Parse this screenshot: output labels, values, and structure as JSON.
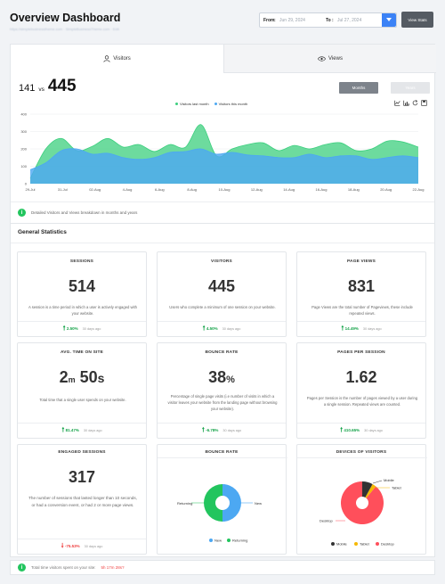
{
  "header": {
    "title": "Overview Dashboard",
    "subtitle": "https://simplebusinesstheme.com · SimpleBusinessTheme.com · Edit",
    "from_label": "From",
    "from_value": "Jun 29, 2024",
    "to_label": "To",
    "to_value": "Jul 27, 2024",
    "view_stats_label": "View Stats"
  },
  "tabs": {
    "visitors": "Visitors",
    "views": "Views"
  },
  "summary": {
    "last": "141",
    "vs": "vs",
    "current": "445",
    "months_label": "Months",
    "years_label": "Years"
  },
  "chart_data": {
    "type": "area",
    "x": [
      "29-Jul",
      "30-Jul",
      "31-Jul",
      "1-Aug",
      "2-Aug",
      "3-Aug",
      "4-Aug",
      "5-Aug",
      "6-Aug",
      "7-Aug",
      "8-Aug",
      "9-Aug",
      "10-Aug",
      "11-Aug",
      "12-Aug",
      "13-Aug",
      "14-Aug",
      "15-Aug",
      "16-Aug",
      "17-Aug",
      "18-Aug",
      "19-Aug",
      "20-Aug",
      "21-Aug",
      "22-Aug",
      "23-Aug"
    ],
    "tick_labels": [
      "29-Jul",
      "31-Jul",
      "02-Aug",
      "4-Aug",
      "6-Aug",
      "8-Aug",
      "10-Aug",
      "12-Aug",
      "14-Aug",
      "16-Aug",
      "18-Aug",
      "20-Aug",
      "22-Aug"
    ],
    "series": [
      {
        "name": "Visitors last month",
        "color": "#3ccf7e",
        "values": [
          30,
          200,
          260,
          190,
          215,
          260,
          210,
          225,
          185,
          225,
          210,
          340,
          160,
          200,
          225,
          235,
          190,
          220,
          200,
          225,
          235,
          190,
          200,
          245,
          240,
          210
        ]
      },
      {
        "name": "Visitors this month",
        "color": "#4ca8f2",
        "values": [
          80,
          120,
          190,
          200,
          170,
          175,
          150,
          140,
          150,
          180,
          185,
          200,
          170,
          180,
          165,
          160,
          150,
          150,
          170,
          150,
          160,
          160,
          140,
          150,
          160,
          150
        ]
      }
    ],
    "ylim": [
      0,
      400
    ],
    "yticks": [
      "0",
      "100",
      "200",
      "300",
      "400"
    ],
    "grid": true,
    "legend": "top-center"
  },
  "chart_info": "Detailed Visitors and Views breakdown in months and years",
  "stats": {
    "title": "General Statistics",
    "cards": [
      {
        "title": "SESSIONS",
        "value": "514",
        "desc": "A session is a time period in which a user is actively engaged with your website.",
        "change": "2.50%",
        "dir": "up",
        "ago": "30 days ago"
      },
      {
        "title": "VISITORS",
        "value": "445",
        "desc": "Users who complete a minimum of one session on your website.",
        "change": "4.50%",
        "dir": "up",
        "ago": "30 days ago"
      },
      {
        "title": "PAGE VIEWS",
        "value": "831",
        "desc": "Page Views are the total number of Pageviews, these include repeated views.",
        "change": "14.49%",
        "dir": "up",
        "ago": "30 days ago"
      },
      {
        "title": "AVG. TIME ON SITE",
        "value_m": "2",
        "unit_m": "m",
        "value_s": "50",
        "unit_s": "s",
        "desc": "Total time that a single user spends on your website.",
        "change": "81.47%",
        "dir": "up",
        "ago": "30 days ago"
      },
      {
        "title": "BOUNCE RATE",
        "value": "38",
        "unit": "%",
        "desc": "Percentage of single page visits (i.e number of visits in which a visitor leaves your website from the landing page without browsing your website).",
        "change": "-6.78%",
        "dir": "up",
        "ago": "30 days ago"
      },
      {
        "title": "PAGES PER SESSION",
        "value": "1.62",
        "desc": "Pages per Session is the number of pages viewed by a user during a single session. Repeated views are counted.",
        "change": "410.65%",
        "dir": "up",
        "ago": "30 days ago"
      },
      {
        "title": "ENGAGED SESSIONS",
        "value": "317",
        "desc": "The number of sessions that lasted longer than 10 seconds, or had a conversion event, or had 2 or more page views.",
        "change": "-75.53%",
        "dir": "down",
        "ago": "30 days ago"
      }
    ],
    "bounce_chart": {
      "title": "BOUNCE RATE",
      "label_returning": "Returning",
      "label_new": "New",
      "legend_new": "New",
      "legend_returning": "Returning",
      "new_color": "#4ca8f2",
      "returning_color": "#22c55e",
      "new_value": 50,
      "returning_value": 50
    },
    "devices_chart": {
      "title": "DEVICES OF VISITORS",
      "label_mobile": "Mobile",
      "label_tablet": "Tablet",
      "label_desktop": "Desktop",
      "mobile_color": "#333333",
      "tablet_color": "#f5b800",
      "desktop_color": "#ff4f5b",
      "mobile_value": 8,
      "tablet_value": 3,
      "desktop_value": 89
    }
  },
  "footer": {
    "text": "Total time visitors spent on your site:",
    "highlight": "5h 17m 28s?"
  }
}
